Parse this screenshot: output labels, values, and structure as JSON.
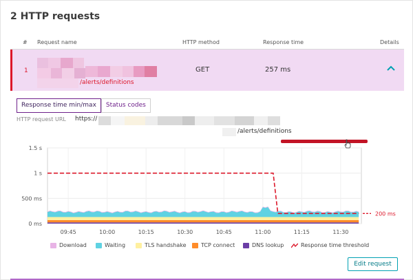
{
  "section": {
    "title": "2 HTTP requests"
  },
  "table": {
    "columns": [
      "#",
      "Request name",
      "HTTP method",
      "Response time",
      "Details"
    ],
    "rows": [
      {
        "index": "1",
        "name_suffix": "/alerts/definitions",
        "method": "GET",
        "response_time": "257 ms"
      }
    ]
  },
  "detail": {
    "tabs": [
      "Response time min/max",
      "Status codes"
    ],
    "url_label": "HTTP request URL",
    "url_prefix": "https://",
    "url_suffix": "/alerts/definitions",
    "edit_button": "Edit request"
  },
  "colors": {
    "download": "#e8b4e6",
    "waiting": "#5fd2e2",
    "tls": "#fff0a0",
    "tcp": "#ff8c2a",
    "dns": "#6b3ea6",
    "threshold": "#dc172a",
    "accent": "#6d1f8a"
  },
  "chart_data": {
    "type": "area",
    "y_ticks": [
      "1.5 s",
      "1 s",
      "500 ms",
      "0 ms"
    ],
    "y_tick_values": [
      1500,
      1000,
      500,
      0
    ],
    "ylim": [
      0,
      1500
    ],
    "x_ticks": [
      "09:45",
      "10:00",
      "10:15",
      "10:30",
      "10:45",
      "11:00",
      "11:15",
      "11:30"
    ],
    "x_tick_minutes": [
      585,
      600,
      615,
      630,
      645,
      660,
      675,
      690
    ],
    "x_range_minutes": [
      577,
      698
    ],
    "threshold": {
      "label": "200 ms",
      "before": 1000,
      "after": 200,
      "drop_at_minutes": 664
    },
    "series": [
      {
        "name": "DNS lookup",
        "color": "#6b3ea6",
        "approx_value": 25
      },
      {
        "name": "TCP connect",
        "color": "#ff8c2a",
        "approx_value": 45
      },
      {
        "name": "TLS handshake",
        "color": "#fff0a0",
        "approx_value": 60
      },
      {
        "name": "Waiting",
        "color": "#5fd2e2",
        "approx_value": 100
      },
      {
        "name": "Download",
        "color": "#e8b4e6",
        "approx_value": 10
      }
    ],
    "legend": [
      "Download",
      "Waiting",
      "TLS handshake",
      "TCP connect",
      "DNS lookup",
      "Response time threshold"
    ],
    "legend_position": "bottom",
    "grid": true
  }
}
